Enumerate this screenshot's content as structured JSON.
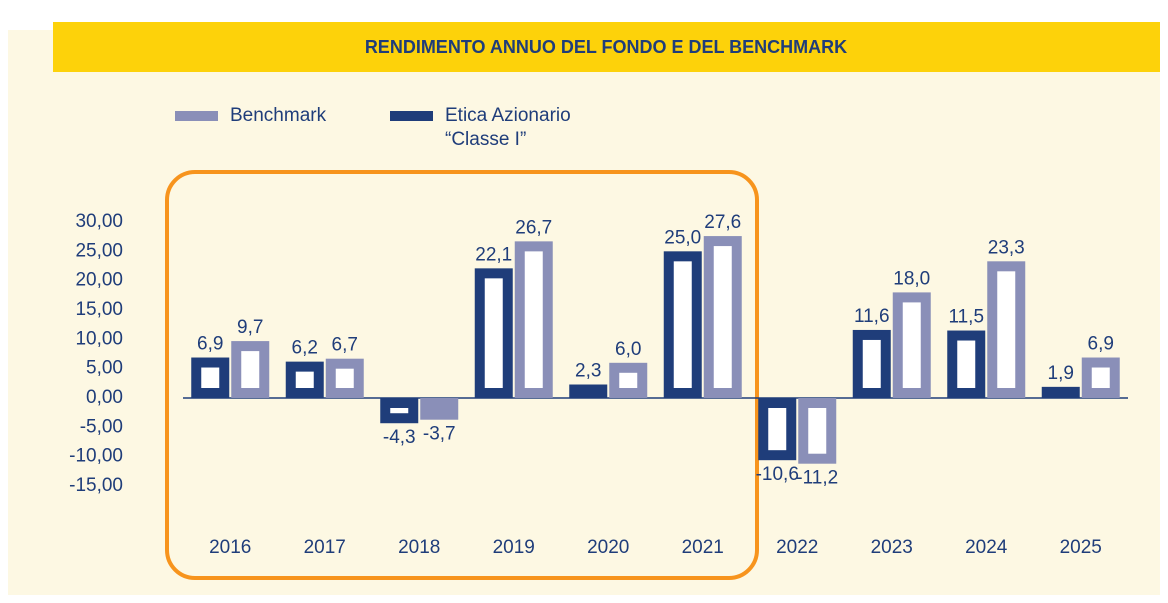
{
  "chart_data": {
    "type": "bar",
    "title": "RENDIMENTO ANNUO DEL FONDO E DEL BENCHMARK",
    "categories": [
      "2016",
      "2017",
      "2018",
      "2019",
      "2020",
      "2021",
      "2022",
      "2023",
      "2024",
      "2025"
    ],
    "series": [
      {
        "name": "Etica Azionario “Classe I”",
        "color": "#1f3d7a",
        "values": [
          6.9,
          6.2,
          -4.3,
          22.1,
          2.3,
          25.0,
          -10.6,
          11.6,
          11.5,
          1.9
        ],
        "value_labels": [
          "6,9",
          "6,2",
          "-4,3",
          "22,1",
          "2,3",
          "25,0",
          "-10,6",
          "11,6",
          "11,5",
          "1,9"
        ]
      },
      {
        "name": "Benchmark",
        "color": "#8a8fb8",
        "values": [
          9.7,
          6.7,
          -3.7,
          26.7,
          6.0,
          27.6,
          -11.2,
          18.0,
          23.3,
          6.9
        ],
        "value_labels": [
          "9,7",
          "6,7",
          "-3,7",
          "26,7",
          "6,0",
          "27,6",
          "-11,2",
          "18,0",
          "23,3",
          "6,9"
        ]
      }
    ],
    "ylim": [
      -15,
      30
    ],
    "yticks": [
      {
        "value": 30,
        "label": "30,00"
      },
      {
        "value": 25,
        "label": "25,00"
      },
      {
        "value": 20,
        "label": "20,00"
      },
      {
        "value": 15,
        "label": "15,00"
      },
      {
        "value": 10,
        "label": "10,00"
      },
      {
        "value": 5,
        "label": "5,00"
      },
      {
        "value": 0,
        "label": "0,00"
      },
      {
        "value": -5,
        "label": "-5,00"
      },
      {
        "value": -10,
        "label": "-10,00"
      },
      {
        "value": -15,
        "label": "-15,00"
      }
    ],
    "grid": false
  }
}
